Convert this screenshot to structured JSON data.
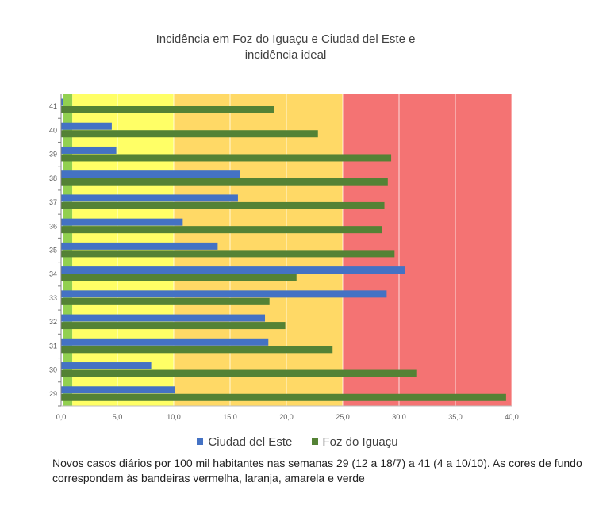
{
  "chart_data": {
    "type": "bar",
    "orientation": "horizontal",
    "title_line1": "Incidência em Foz do Iguaçu e Ciudad del Este e",
    "title_line2": "incidência ideal",
    "categories": [
      "29",
      "30",
      "31",
      "32",
      "33",
      "34",
      "35",
      "36",
      "37",
      "38",
      "39",
      "40",
      "41"
    ],
    "series": [
      {
        "name": "Ciudad del Este",
        "color": "#4472c4",
        "values": [
          10.1,
          8.0,
          18.4,
          18.1,
          28.9,
          30.5,
          13.9,
          10.8,
          15.7,
          15.9,
          4.9,
          4.5,
          0.2
        ]
      },
      {
        "name": "Foz do Iguaçu",
        "color": "#548235",
        "values": [
          39.5,
          31.6,
          24.1,
          19.9,
          18.5,
          20.9,
          29.6,
          28.5,
          28.7,
          29.0,
          29.3,
          22.8,
          18.9
        ]
      }
    ],
    "xlim": [
      0,
      40
    ],
    "xticks": [
      "0,0",
      "5,0",
      "10,0",
      "15,0",
      "20,0",
      "25,0",
      "30,0",
      "35,0",
      "40,0"
    ],
    "xtick_values": [
      0,
      5,
      10,
      15,
      20,
      25,
      30,
      35,
      40
    ],
    "background_bands": [
      {
        "flag": "verde",
        "from": 0.2,
        "to": 1.0,
        "color": "#92d050"
      },
      {
        "flag": "amarela",
        "from": 1.0,
        "to": 10.0,
        "color": "#ffff66"
      },
      {
        "flag": "laranja",
        "from": 10.0,
        "to": 25.0,
        "color": "#ffd966"
      },
      {
        "flag": "vermelha",
        "from": 25.0,
        "to": 40.0,
        "color": "#f47373"
      }
    ],
    "legend_position": "bottom"
  },
  "caption": "Novos casos diários por 100 mil habitantes nas semanas 29 (12 a 18/7) a 41 (4 a 10/10). As cores de fundo correspondem às bandeiras vermelha, laranja, amarela e verde"
}
